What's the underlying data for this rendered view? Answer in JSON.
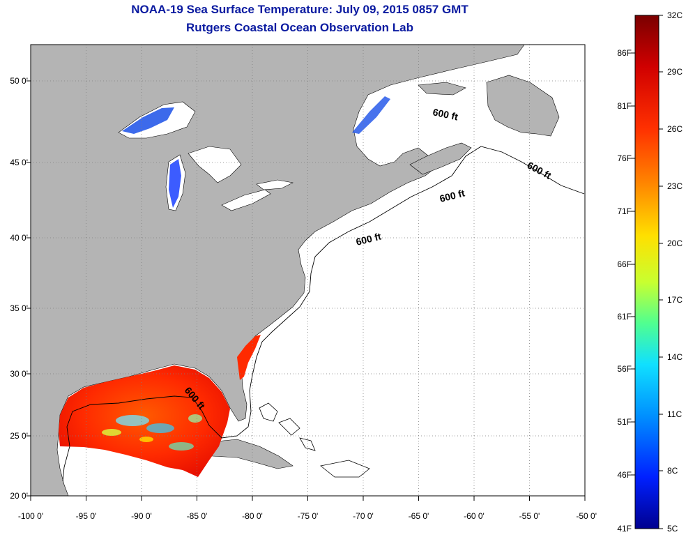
{
  "title": "NOAA-19 Sea Surface Temperature:  July 09, 2015 0857 GMT",
  "subtitle": "Rutgers Coastal Ocean Observation Lab",
  "map": {
    "lon_labels": [
      "-100 0'",
      "-95 0'",
      "-90 0'",
      "-85 0'",
      "-80 0'",
      "-75 0'",
      "-70 0'",
      "-65 0'",
      "-60 0'",
      "-55 0'",
      "-50 0'"
    ],
    "lat_labels": [
      "50 0'",
      "45 0'",
      "40 0'",
      "35 0'",
      "30 0'",
      "25 0'",
      "20 0'"
    ],
    "contour_label": "600 ft",
    "colors": {
      "land": "#b4b4b4",
      "ocean_no_data": "#ffffff",
      "grid": "#7f7f7f"
    }
  },
  "colorbar": {
    "celsius_labels": [
      "32C",
      "29C",
      "26C",
      "23C",
      "20C",
      "17C",
      "14C",
      "11C",
      "8C",
      "5C"
    ],
    "fahrenheit_labels": [
      "86F",
      "81F",
      "76F",
      "71F",
      "66F",
      "61F",
      "56F",
      "51F",
      "46F",
      "41F"
    ],
    "colors": [
      "#7a0000",
      "#ff1200",
      "#ff6a00",
      "#ffd400",
      "#d8ff20",
      "#68ff90",
      "#10e8ff",
      "#0090ff",
      "#0020ff",
      "#00008f"
    ]
  }
}
